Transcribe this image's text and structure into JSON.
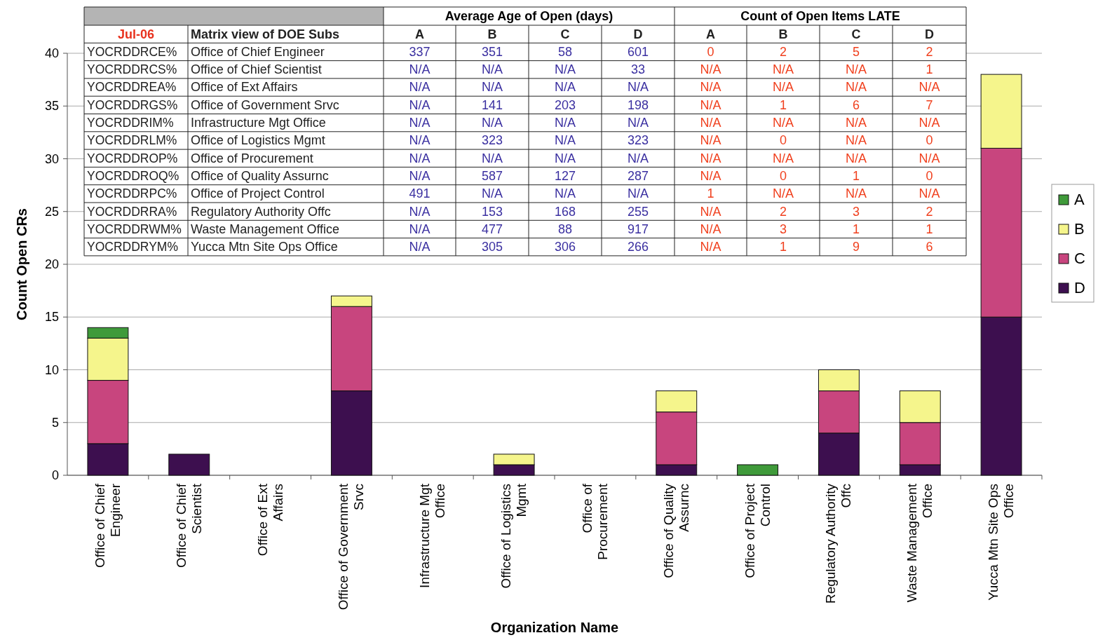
{
  "chart_data": {
    "type": "bar",
    "stacked": true,
    "xlabel": "Organization Name",
    "ylabel": "Count Open CRs",
    "categories": [
      "Office of Chief Engineer",
      "Office of Chief Scientist",
      "Office of Ext Affairs",
      "Office of Government Srvc",
      "Infrastructure Mgt Office",
      "Office of Logistics Mgmt",
      "Office of Procurement",
      "Office of Quality Assurnc",
      "Office of Project Control",
      "Regulatory Authority Offc",
      "Waste Management Office",
      "Yucca Mtn Site Ops Office"
    ],
    "series": [
      {
        "name": "D",
        "color": "#3d0f4f",
        "values": [
          3,
          2,
          0,
          8,
          0,
          1,
          0,
          1,
          0,
          4,
          1,
          15
        ]
      },
      {
        "name": "C",
        "color": "#c8457e",
        "values": [
          6,
          0,
          0,
          8,
          0,
          0,
          0,
          5,
          0,
          4,
          4,
          16
        ]
      },
      {
        "name": "B",
        "color": "#f5f58c",
        "values": [
          4,
          0,
          0,
          1,
          0,
          1,
          0,
          2,
          0,
          2,
          3,
          7
        ]
      },
      {
        "name": "A",
        "color": "#3f9a3a",
        "values": [
          1,
          0,
          0,
          0,
          0,
          0,
          0,
          0,
          1,
          0,
          0,
          0
        ]
      }
    ],
    "ylim": [
      0,
      40
    ],
    "yticks": [
      0,
      5,
      10,
      15,
      20,
      25,
      30,
      35,
      40
    ],
    "grid": "y",
    "legend": "right",
    "annotations": [
      "Average Age of Open (days)",
      "Count of Open Items LATE",
      "Jul-06",
      "Matrix view of DOE Subs",
      "A",
      "B",
      "C",
      "D",
      "A",
      "B",
      "C",
      "D",
      "YOCRDDRCE%",
      "Office of Chief Engineer",
      "337",
      "351",
      "58",
      "601",
      "0",
      "2",
      "5",
      "2",
      "YOCRDDRCS%",
      "Office of Chief Scientist",
      "N/A",
      "N/A",
      "N/A",
      "33",
      "N/A",
      "N/A",
      "N/A",
      "1",
      "YOCRDDREA%",
      "Office of Ext Affairs",
      "N/A",
      "N/A",
      "N/A",
      "N/A",
      "N/A",
      "N/A",
      "N/A",
      "N/A",
      "YOCRDDRGS%",
      "Office of Government Srvc",
      "N/A",
      "141",
      "203",
      "198",
      "N/A",
      "1",
      "6",
      "7",
      "YOCRDDRIM%",
      "Infrastructure Mgt Office",
      "N/A",
      "N/A",
      "N/A",
      "N/A",
      "N/A",
      "N/A",
      "N/A",
      "N/A",
      "YOCRDDRLM%",
      "Office of Logistics Mgmt",
      "N/A",
      "323",
      "N/A",
      "323",
      "N/A",
      "0",
      "N/A",
      "0",
      "YOCRDDROP%",
      "Office of Procurement",
      "N/A",
      "N/A",
      "N/A",
      "N/A",
      "N/A",
      "N/A",
      "N/A",
      "N/A",
      "YOCRDDROQ%",
      "Office of Quality Assurnc",
      "N/A",
      "587",
      "127",
      "287",
      "N/A",
      "0",
      "1",
      "0",
      "YOCRDDRPC%",
      "Office of Project Control",
      "491",
      "N/A",
      "N/A",
      "N/A",
      "1",
      "N/A",
      "N/A",
      "N/A",
      "YOCRDDRRA%",
      "Regulatory Authority Offc",
      "N/A",
      "153",
      "168",
      "255",
      "N/A",
      "2",
      "3",
      "2",
      "YOCRDDRWM%",
      "Waste Management Office",
      "N/A",
      "477",
      "88",
      "917",
      "N/A",
      "3",
      "1",
      "1",
      "YOCRDDRYM%",
      "Yucca Mtn Site Ops Office",
      "N/A",
      "305",
      "306",
      "266",
      "N/A",
      "1",
      "9",
      "6"
    ]
  }
}
